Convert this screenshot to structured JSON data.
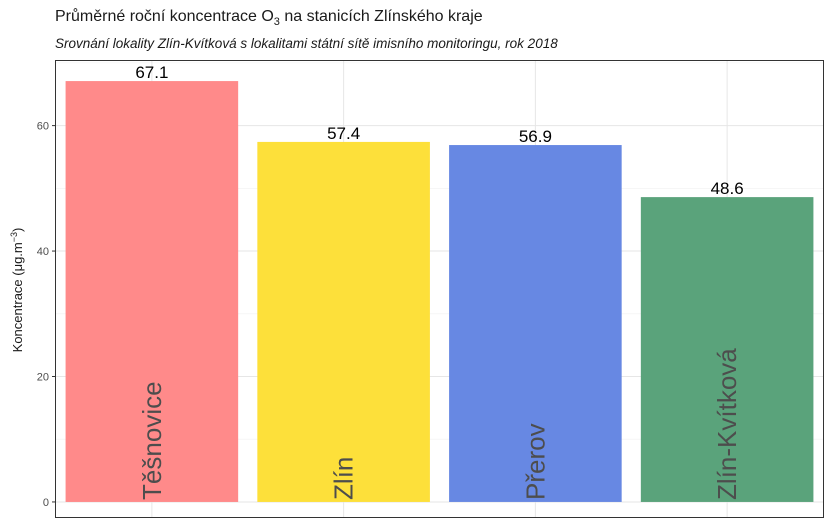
{
  "chart_data": {
    "type": "bar",
    "title": {
      "prefix": "Průměrné roční koncentrace O",
      "sub": "3",
      "suffix": " na stanicích Zlínského kraje"
    },
    "subtitle": "Srovnání lokality Zlín-Kvítková s lokalitami státní sítě imisního monitoringu, rok 2018",
    "ylabel": {
      "base": "Koncentrace (μg.m",
      "sup": "−3",
      "close": ")"
    },
    "categories": [
      "Těšnovice",
      "Zlín",
      "Přerov",
      "Zlín-Kvítková"
    ],
    "values": [
      67.1,
      57.4,
      56.9,
      48.6
    ],
    "value_labels": [
      "67.1",
      "57.4",
      "56.9",
      "48.6"
    ],
    "colors": [
      "#ff8a8a",
      "#fde03a",
      "#6788e3",
      "#5aa37b"
    ],
    "yticks": [
      0,
      20,
      40,
      60
    ],
    "ylim": [
      -2.4,
      70.3
    ],
    "grid": true,
    "legend": "none"
  }
}
